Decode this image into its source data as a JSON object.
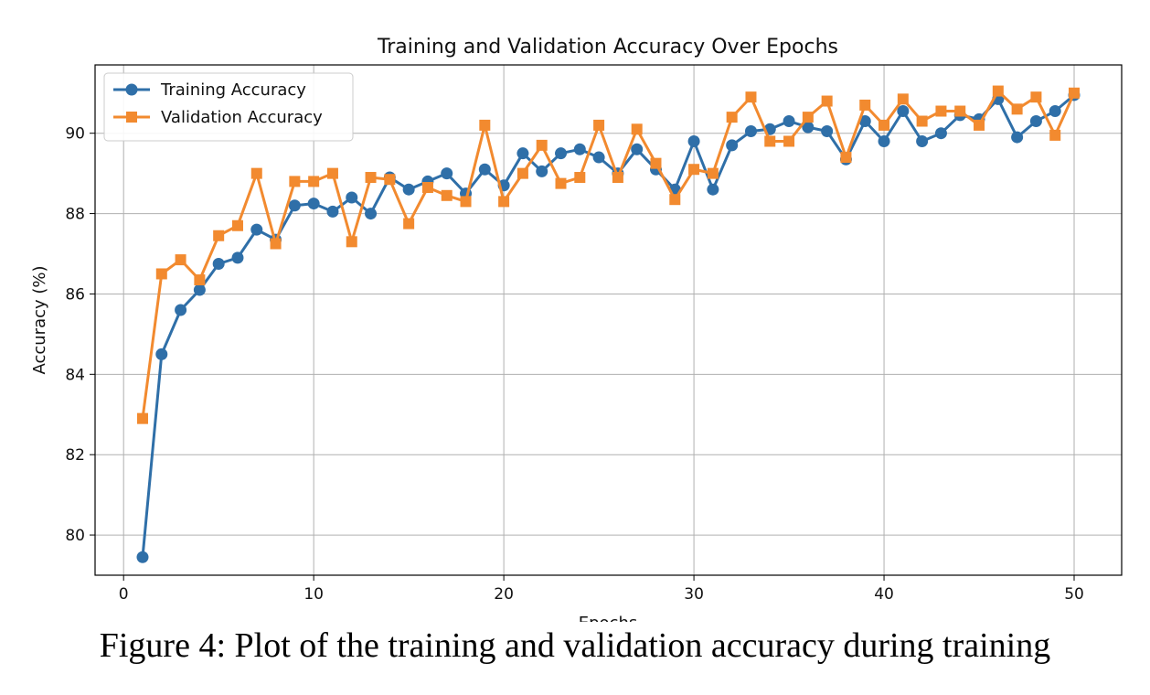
{
  "caption": "Figure 4: Plot of the training and validation accuracy during training",
  "chart_data": {
    "type": "line",
    "title": "Training and Validation Accuracy Over Epochs",
    "xlabel": "Epochs",
    "ylabel": "Accuracy (%)",
    "xlim": [
      -1.5,
      52.5
    ],
    "ylim": [
      79.0,
      91.7
    ],
    "xticks": [
      0,
      10,
      20,
      30,
      40,
      50
    ],
    "yticks": [
      80,
      82,
      84,
      86,
      88,
      90
    ],
    "grid": true,
    "legend_position": "top-left",
    "x": [
      1,
      2,
      3,
      4,
      5,
      6,
      7,
      8,
      9,
      10,
      11,
      12,
      13,
      14,
      15,
      16,
      17,
      18,
      19,
      20,
      21,
      22,
      23,
      24,
      25,
      26,
      27,
      28,
      29,
      30,
      31,
      32,
      33,
      34,
      35,
      36,
      37,
      38,
      39,
      40,
      41,
      42,
      43,
      44,
      45,
      46,
      47,
      48,
      49,
      50
    ],
    "series": [
      {
        "name": "Training Accuracy",
        "color": "#2f6fa8",
        "marker": "circle",
        "values": [
          79.45,
          84.5,
          85.6,
          86.1,
          86.75,
          86.9,
          87.6,
          87.35,
          88.2,
          88.25,
          88.05,
          88.4,
          88.0,
          88.9,
          88.6,
          88.8,
          89.0,
          88.5,
          89.1,
          88.7,
          89.5,
          89.05,
          89.5,
          89.6,
          89.4,
          89.0,
          89.6,
          89.1,
          88.6,
          89.8,
          88.6,
          89.7,
          90.05,
          90.1,
          90.3,
          90.15,
          90.05,
          89.35,
          90.3,
          89.8,
          90.55,
          89.8,
          90.0,
          90.45,
          90.35,
          90.85,
          89.9,
          90.3,
          90.55,
          90.95
        ]
      },
      {
        "name": "Validation Accuracy",
        "color": "#f28a2f",
        "marker": "square",
        "values": [
          82.9,
          86.5,
          86.85,
          86.35,
          87.45,
          87.7,
          89.0,
          87.25,
          88.8,
          88.8,
          89.0,
          87.3,
          88.9,
          88.85,
          87.75,
          88.65,
          88.45,
          88.3,
          90.2,
          88.3,
          89.0,
          89.7,
          88.75,
          88.9,
          90.2,
          88.9,
          90.1,
          89.25,
          88.35,
          89.1,
          89.0,
          90.4,
          90.9,
          89.8,
          89.8,
          90.4,
          90.8,
          89.4,
          90.7,
          90.2,
          90.85,
          90.3,
          90.55,
          90.55,
          90.2,
          91.05,
          90.6,
          90.9,
          89.95,
          91.0
        ]
      }
    ]
  }
}
